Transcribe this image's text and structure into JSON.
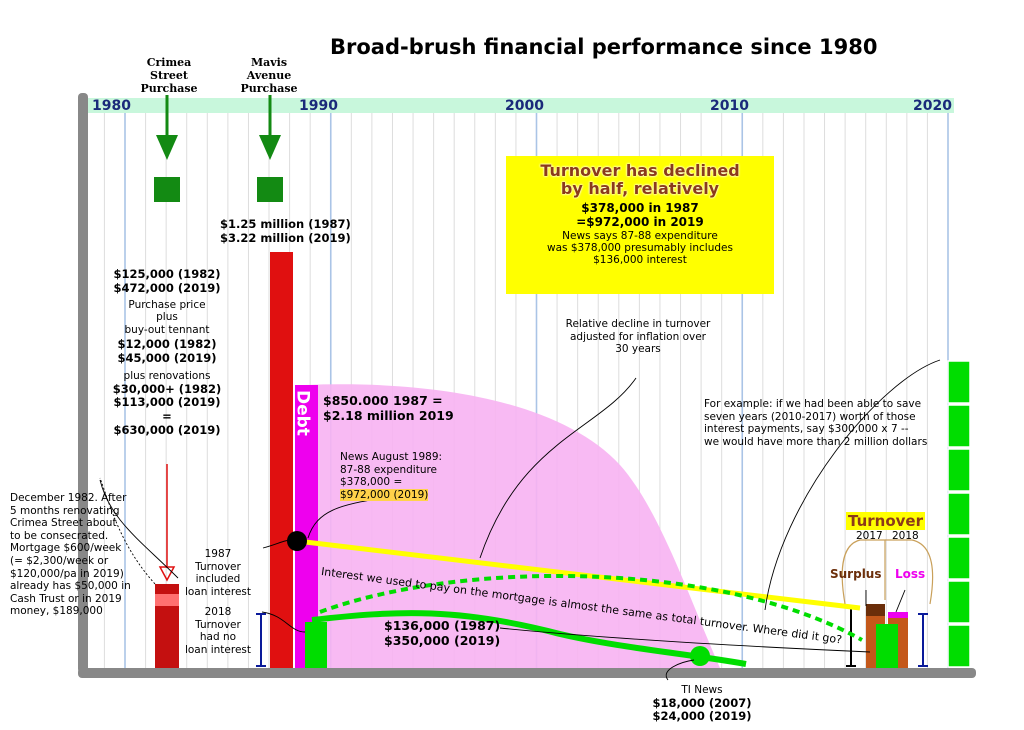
{
  "colors": {
    "axis_strip": "#c8f7dc",
    "axis_year": "#1a2a7a",
    "frame": "#888888",
    "grid": "#dddddd",
    "grid_decade": "#aac4e6",
    "debt_fill": "#f7b3f2",
    "red_bar": "#e01010",
    "dark_red": "#c41010",
    "magenta": "#ee00ee",
    "green": "#00dd00",
    "dark_green": "#138a13",
    "yellow": "#ffff00",
    "highlight": "#ffd24a",
    "brown": "#c4581a",
    "dark_brown": "#6b2e0a",
    "navy": "#0a1a9a"
  },
  "chart_data": {
    "type": "bar",
    "title": "Broad-brush financial performance since 1980",
    "x_range": [
      1980,
      2020
    ],
    "x_ticks": [
      "1980",
      "1990",
      "2000",
      "2010",
      "2020"
    ],
    "grid": true,
    "property_purchases": [
      {
        "name": "Crimea Street Purchase",
        "year": 1982
      },
      {
        "name": "Mavis Avenue Purchase",
        "year": 1987
      }
    ],
    "bars": [
      {
        "name": "Crimea Street total",
        "year": 1982,
        "value_2019": 630000
      },
      {
        "name": "Mavis Avenue",
        "year": 1987,
        "value_1987": 1250000,
        "value_2019": 3220000
      },
      {
        "name": "Debt",
        "year": 1988,
        "value_1987": 850000,
        "value_2019": 2180000
      },
      {
        "name": "Turnover 2017",
        "year": 2017
      },
      {
        "name": "Turnover 2018",
        "year": 2018
      }
    ],
    "series": [
      {
        "name": "Turnover",
        "points": [
          {
            "x": 1987,
            "y": 378000
          },
          {
            "x": 2019,
            "y": 972000
          }
        ]
      },
      {
        "name": "TI News",
        "points": [
          {
            "x": 2007,
            "y": 18000
          },
          {
            "x": 2019,
            "y": 24000
          }
        ]
      }
    ]
  },
  "title": "Broad-brush financial performance since 1980",
  "axis": {
    "y1980": "1980",
    "y1990": "1990",
    "y2000": "2000",
    "y2010": "2010",
    "y2020": "2020"
  },
  "purchase_crimea": [
    "Crimea",
    "Street",
    "Purchase"
  ],
  "purchase_mavis": [
    "Mavis",
    "Avenue",
    "Purchase"
  ],
  "mavis_value": [
    "$1.25 million (1987)",
    "$3.22 million (2019)"
  ],
  "crimea_block": {
    "price": [
      "$125,000 (1982)",
      "$472,000 (2019)"
    ],
    "plus_text": [
      "Purchase price",
      "plus",
      "buy-out tennant"
    ],
    "tenant": [
      "$12,000 (1982)",
      "$45,000 (2019)"
    ],
    "plus_renov": "plus renovations",
    "renov": [
      "$30,000+ (1982)",
      "$113,000 (2019)"
    ],
    "equals": "=",
    "total": "$630,000 (2019)"
  },
  "debt_label": "Debt",
  "debt_value": [
    "$850.000 1987 =",
    "$2.18 million 2019"
  ],
  "news_1989": [
    "News August 1989:",
    "87-88 expenditure",
    "$378,000 ="
  ],
  "news_1989_hl": "$972,000 (2019)",
  "yellow_box": {
    "heading": [
      "Turnover has declined",
      "by half, relatively"
    ],
    "lines_bold": [
      "$378,000 in 1987",
      "=$972,000 in 2019"
    ],
    "lines": [
      "News says 87-88 expenditure",
      "was $378,000 presumably includes",
      "$136,000 interest"
    ]
  },
  "relative_decline": [
    "Relative decline in turnover",
    "adjusted for inflation over",
    "30 years"
  ],
  "example_note": [
    "For example: if we had been able to save",
    "seven years (2010-2017) worth of those",
    "interest payments, say $300,000 x 7 --",
    "we would have more than 2 million dollars"
  ],
  "left_note": [
    "December 1982. After",
    "5 months renovating",
    "Crimea Street about",
    "to be consecrated.",
    "Mortgage $600/week",
    "(= $2,300/week or",
    "$120,000/pa in 2019)",
    "already has $50,000 in",
    "Cash Trust or in 2019",
    "money, $189,000"
  ],
  "note_1987": [
    "1987",
    "Turnover",
    "included",
    "loan interest"
  ],
  "note_2018": [
    "2018",
    "Turnover",
    "had no",
    "loan interest"
  ],
  "interest_values": [
    "$136,000 (1987)",
    "$350,000 (2019)"
  ],
  "interest_curve_label": "Interest we used to pay on the mortgage is almost the same as total turnover. Where did it go?",
  "ti_news": [
    "TI News",
    "$18,000 (2007)",
    "$24,000 (2019)"
  ],
  "turnover_label": "Turnover",
  "turnover_years": [
    "2017",
    "2018"
  ],
  "surplus": "Surplus",
  "loss": "Loss"
}
